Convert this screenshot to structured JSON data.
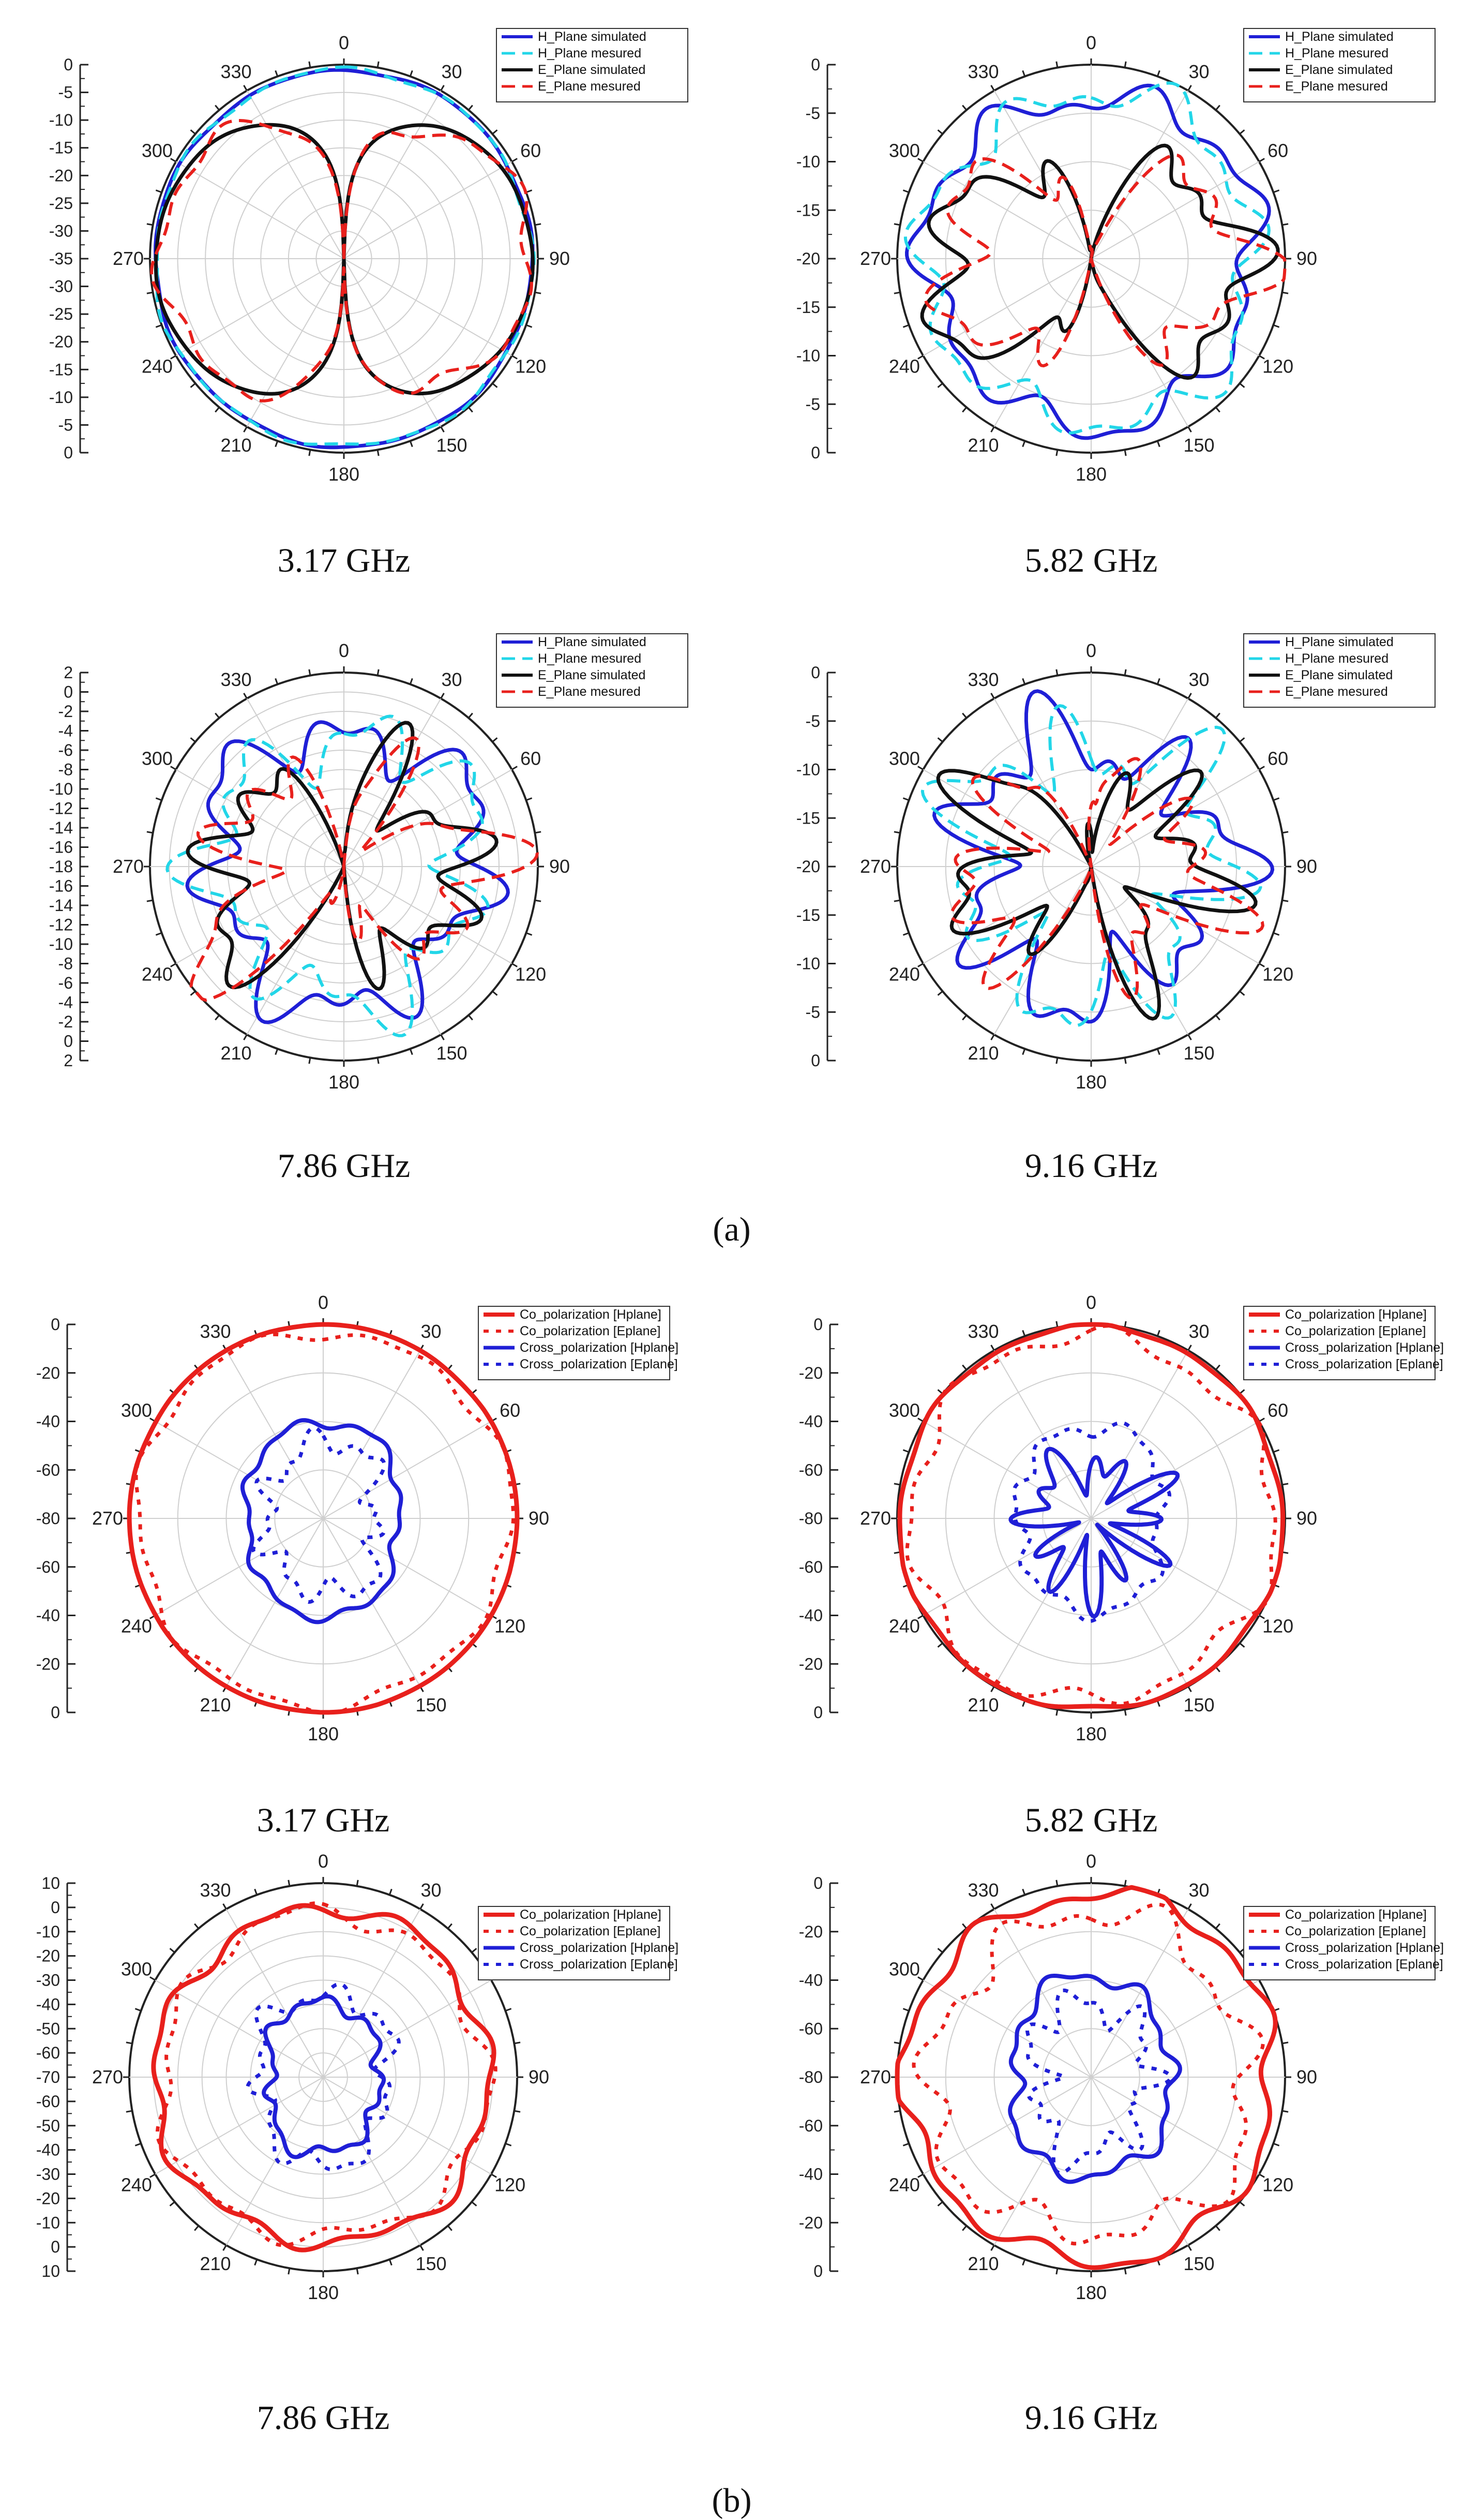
{
  "figure": {
    "panel_a": "(a)",
    "panel_b": "(b)"
  },
  "colors": {
    "blue": "#1f1fd6",
    "cyan": "#22d6e8",
    "black": "#111111",
    "red": "#e8201c",
    "lightblue": "#2a7fdc",
    "grid": "#cfcfcf"
  },
  "chart_data": [
    {
      "type": "polar",
      "caption": "3.17 GHz",
      "angle_labels": [
        "0",
        "30",
        "60",
        "90",
        "120",
        "150",
        "180",
        "210",
        "240",
        "270",
        "300",
        "330"
      ],
      "r_range_db": [
        -35,
        0
      ],
      "r_tick_labels": [
        "0",
        "-5",
        "-10",
        "-15",
        "-20",
        "-25",
        "-30",
        "-35",
        "-30",
        "-25",
        "-20",
        "-15",
        "-10",
        "-5",
        "0"
      ],
      "legend": [
        "H_Plane simulated",
        "H_Plane mesured",
        "E_Plane simulated",
        "E_Plane mesured"
      ],
      "series": [
        {
          "name": "H_Plane simulated",
          "pattern": "omni",
          "level": -1,
          "ripple": 0.3,
          "seed": 1
        },
        {
          "name": "H_Plane mesured",
          "pattern": "omni",
          "level": -1,
          "ripple": 0.6,
          "seed": 2
        },
        {
          "name": "E_Plane simulated",
          "pattern": "dipole",
          "level": -1,
          "null": -35,
          "ripple": 0.2,
          "seed": 3
        },
        {
          "name": "E_Plane mesured",
          "pattern": "dipole",
          "level": -1.5,
          "null": -34,
          "ripple": 2.0,
          "seed": 4
        }
      ]
    },
    {
      "type": "polar",
      "caption": "5.82 GHz",
      "angle_labels": [
        "0",
        "30",
        "60",
        "90",
        "120",
        "150",
        "180",
        "210",
        "240",
        "270",
        "300",
        "330"
      ],
      "r_range_db": [
        -20,
        0
      ],
      "r_tick_labels": [
        "0",
        "-5",
        "-10",
        "-15",
        "-20",
        "-15",
        "-10",
        "-5",
        "0"
      ],
      "legend": [
        "H_Plane simulated",
        "H_Plane mesured",
        "E_Plane simulated",
        "E_Plane mesured"
      ],
      "series": [
        {
          "name": "H_Plane simulated",
          "pattern": "omni",
          "level": -3,
          "ripple": 2.0,
          "seed": 5
        },
        {
          "name": "H_Plane mesured",
          "pattern": "omni",
          "level": -3,
          "ripple": 2.3,
          "seed": 6
        },
        {
          "name": "E_Plane simulated",
          "pattern": "dipole",
          "level": -4,
          "null": -20,
          "ripple": 3.5,
          "seed": 7
        },
        {
          "name": "E_Plane mesured",
          "pattern": "dipole",
          "level": -4.5,
          "null": -20,
          "ripple": 4.0,
          "seed": 8
        }
      ]
    },
    {
      "type": "polar",
      "caption": "7.86 GHz",
      "angle_labels": [
        "0",
        "30",
        "60",
        "90",
        "120",
        "150",
        "180",
        "210",
        "240",
        "270",
        "300",
        "330"
      ],
      "r_range_db": [
        -18,
        2
      ],
      "r_tick_labels": [
        "2",
        "0",
        "-2",
        "-4",
        "-6",
        "-8",
        "-10",
        "-12",
        "-14",
        "-16",
        "-18",
        "-16",
        "-14",
        "-12",
        "-10",
        "-8",
        "-6",
        "-4",
        "-2",
        "0",
        "2"
      ],
      "legend": [
        "H_Plane simulated",
        "H_Plane mesured",
        "E_Plane simulated",
        "E_Plane mesured"
      ],
      "series": [
        {
          "name": "H_Plane simulated",
          "pattern": "omni",
          "level": -4,
          "ripple": 3.5,
          "seed": 9
        },
        {
          "name": "H_Plane mesured",
          "pattern": "omni",
          "level": -4.5,
          "ripple": 4.0,
          "seed": 10
        },
        {
          "name": "E_Plane simulated",
          "pattern": "lobed",
          "level": -5,
          "null": -18,
          "ripple": 5.0,
          "seed": 11
        },
        {
          "name": "E_Plane mesured",
          "pattern": "lobed",
          "level": -5,
          "null": -18,
          "ripple": 5.5,
          "seed": 12
        }
      ]
    },
    {
      "type": "polar",
      "caption": "9.16 GHz",
      "angle_labels": [
        "0",
        "30",
        "60",
        "90",
        "120",
        "150",
        "180",
        "210",
        "240",
        "270",
        "300",
        "330"
      ],
      "r_range_db": [
        -20,
        0
      ],
      "r_tick_labels": [
        "0",
        "-5",
        "-10",
        "-15",
        "-20",
        "-15",
        "-10",
        "-5",
        "0"
      ],
      "legend": [
        "H_Plane simulated",
        "H_Plane mesured",
        "E_Plane simulated",
        "E_Plane mesured"
      ],
      "series": [
        {
          "name": "H_Plane simulated",
          "pattern": "omni",
          "level": -7,
          "ripple": 5.0,
          "seed": 13
        },
        {
          "name": "H_Plane mesured",
          "pattern": "omni",
          "level": -7,
          "ripple": 5.5,
          "seed": 14
        },
        {
          "name": "E_Plane simulated",
          "pattern": "lobed",
          "level": -8,
          "null": -20,
          "ripple": 6.0,
          "seed": 15
        },
        {
          "name": "E_Plane mesured",
          "pattern": "lobed",
          "level": -8,
          "null": -20,
          "ripple": 6.5,
          "seed": 16
        }
      ]
    },
    {
      "type": "polar",
      "caption": "3.17 GHz",
      "angle_labels": [
        "0",
        "30",
        "60",
        "90",
        "120",
        "150",
        "180",
        "210",
        "240",
        "270",
        "300",
        "330"
      ],
      "r_range_db": [
        -80,
        0
      ],
      "r_tick_labels": [
        "0",
        "-20",
        "-40",
        "-60",
        "-80",
        "-60",
        "-40",
        "-20",
        "0"
      ],
      "legend": [
        "Co_polarization [Hplane]",
        "Co_polarization [Eplane]",
        "Cross_polarization [Hplane]",
        "Cross_polarization [Eplane]"
      ],
      "series": [
        {
          "name": "Co_polarization [Hplane]",
          "pattern": "omni",
          "level": 0,
          "ripple": 0.3,
          "seed": 17
        },
        {
          "name": "Co_polarization [Eplane]",
          "pattern": "omni",
          "level": -3,
          "ripple": 3.0,
          "seed": 18
        },
        {
          "name": "Cross_polarization [Hplane]",
          "pattern": "cross",
          "level": -43,
          "ripple": 2.5,
          "seed": 19
        },
        {
          "name": "Cross_polarization [Eplane]",
          "pattern": "cross",
          "level": -52,
          "ripple": 7.0,
          "seed": 20
        }
      ]
    },
    {
      "type": "polar",
      "caption": "5.82 GHz",
      "angle_labels": [
        "0",
        "30",
        "60",
        "90",
        "120",
        "150",
        "180",
        "210",
        "240",
        "270",
        "300",
        "330"
      ],
      "r_range_db": [
        -80,
        0
      ],
      "r_tick_labels": [
        "0",
        "-20",
        "-40",
        "-60",
        "-80",
        "-60",
        "-40",
        "-20",
        "0"
      ],
      "legend": [
        "Co_polarization [Hplane]",
        "Co_polarization [Eplane]",
        "Cross_polarization [Hplane]",
        "Cross_polarization [Eplane]"
      ],
      "series": [
        {
          "name": "Co_polarization [Hplane]",
          "pattern": "omni",
          "level": -1,
          "ripple": 1.2,
          "seed": 21
        },
        {
          "name": "Co_polarization [Eplane]",
          "pattern": "omni",
          "level": -5,
          "ripple": 5.0,
          "seed": 22
        },
        {
          "name": "Cross_polarization [Hplane]",
          "pattern": "star",
          "level": -58,
          "ripple": 10.0,
          "seed": 23
        },
        {
          "name": "Cross_polarization [Eplane]",
          "pattern": "cross",
          "level": -45,
          "ripple": 4.0,
          "seed": 24
        }
      ]
    },
    {
      "type": "polar",
      "caption": "7.86 GHz",
      "angle_labels": [
        "0",
        "30",
        "60",
        "90",
        "120",
        "150",
        "180",
        "210",
        "240",
        "270",
        "300",
        "330"
      ],
      "r_range_db": [
        -70,
        10
      ],
      "r_tick_labels": [
        "10",
        "0",
        "-10",
        "-20",
        "-30",
        "-40",
        "-50",
        "-60",
        "-70",
        "-60",
        "-50",
        "-40",
        "-30",
        "-20",
        "-10",
        "0",
        "10"
      ],
      "legend": [
        "Co_polarization [Hplane]",
        "Co_polarization [Eplane]",
        "Cross_polarization [Hplane]",
        "Cross_polarization [Eplane]"
      ],
      "series": [
        {
          "name": "Co_polarization [Hplane]",
          "pattern": "omni",
          "level": -1,
          "ripple": 4.0,
          "seed": 25
        },
        {
          "name": "Co_polarization [Eplane]",
          "pattern": "omni",
          "level": -3,
          "ripple": 5.0,
          "seed": 26
        },
        {
          "name": "Cross_polarization [Hplane]",
          "pattern": "cross",
          "level": -42,
          "ripple": 3.5,
          "seed": 27
        },
        {
          "name": "Cross_polarization [Eplane]",
          "pattern": "cross",
          "level": -38,
          "ripple": 6.0,
          "seed": 28
        }
      ]
    },
    {
      "type": "polar",
      "caption": "9.16 GHz",
      "angle_labels": [
        "0",
        "30",
        "60",
        "90",
        "120",
        "150",
        "180",
        "210",
        "240",
        "270",
        "300",
        "330"
      ],
      "r_range_db": [
        -80,
        0
      ],
      "r_tick_labels": [
        "0",
        "-20",
        "-40",
        "-60",
        "-80",
        "-60",
        "-40",
        "-20",
        "0"
      ],
      "legend": [
        "Co_polarization [Hplane]",
        "Co_polarization [Eplane]",
        "Cross_polarization [Hplane]",
        "Cross_polarization [Eplane]"
      ],
      "series": [
        {
          "name": "Co_polarization [Hplane]",
          "pattern": "omni",
          "level": -4,
          "ripple": 5.0,
          "seed": 29
        },
        {
          "name": "Co_polarization [Eplane]",
          "pattern": "omni",
          "level": -14,
          "ripple": 9.0,
          "seed": 30
        },
        {
          "name": "Cross_polarization [Hplane]",
          "pattern": "cross",
          "level": -42,
          "ripple": 4.0,
          "seed": 31
        },
        {
          "name": "Cross_polarization [Eplane]",
          "pattern": "cross",
          "level": -52,
          "ripple": 9.0,
          "seed": 32
        }
      ]
    }
  ]
}
